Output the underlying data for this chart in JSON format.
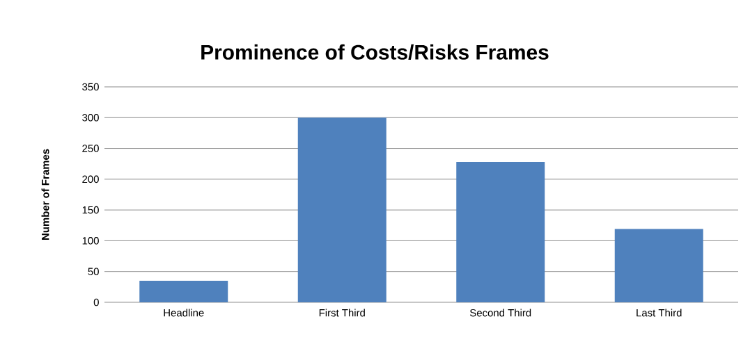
{
  "chart_data": {
    "type": "bar",
    "title": "Prominence of Costs/Risks Frames",
    "ylabel": "Number of Frames",
    "categories": [
      "Headline",
      "First Third",
      "Second Third",
      "Last Third"
    ],
    "values": [
      35,
      300,
      228,
      119
    ],
    "color": "#4f81bd",
    "ylim": [
      0,
      350
    ],
    "yticks": [
      0,
      50,
      100,
      150,
      200,
      250,
      300,
      350
    ],
    "grid": "y"
  }
}
